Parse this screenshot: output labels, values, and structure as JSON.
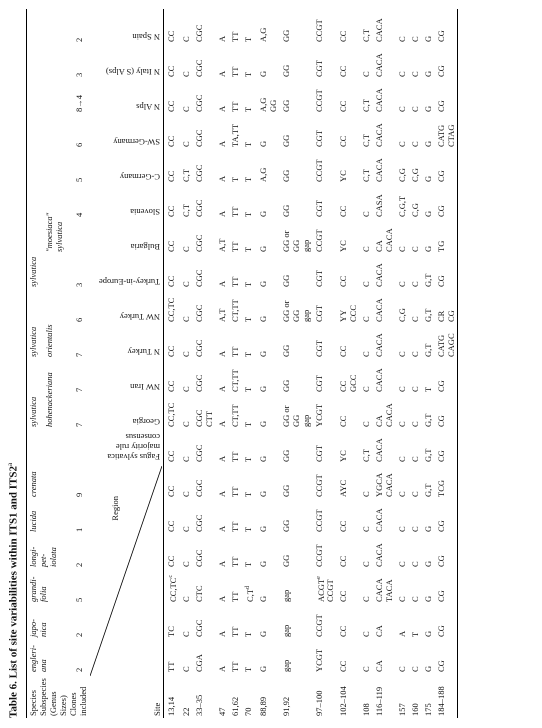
{
  "header": {
    "title": {
      "text": "Table 6. List of site variabilities within ITS1 and ITS2",
      "sup": "a"
    },
    "row_labels": [
      "Species",
      "Subspecies",
      "(Genus Sizes)",
      "Clones",
      "included"
    ],
    "region_label": "Region",
    "site_label": "Site",
    "species": [
      {
        "name": "engleri-\nana",
        "clones": 2
      },
      {
        "name": "japo-\nnica",
        "clones": 2
      },
      {
        "name": "grandi-\nfolia",
        "clones": 5
      },
      {
        "name": "longi-\npet-\niolata",
        "clones": 2
      },
      {
        "name": "lucida",
        "clones": 1
      },
      {
        "name": "crenata",
        "clones": 9
      }
    ],
    "consensus": "Fagus sylvatica majority rule consensus",
    "groups": [
      {
        "species": "sylvatica",
        "subgroups": [
          {
            "subspecies": "hohenackeriana",
            "stations": [
              {
                "name": "Georgia",
                "clones": 7
              },
              {
                "name": "NW Iran",
                "clones": 7
              }
            ]
          }
        ]
      },
      {
        "species": "sylvatica",
        "subgroups": [
          {
            "subspecies": "orientalis",
            "stations": [
              {
                "name": "N Turkey",
                "clones": 7
              },
              {
                "name": "NW Turkey",
                "clones": 6
              }
            ]
          }
        ]
      },
      {
        "species": "sylvatica",
        "subgroups": [
          {
            "stations": [
              {
                "name": "Turkey-in-Europe",
                "clones": 3
              }
            ]
          },
          {
            "subspecies": "\"moesiaca\" sylvatica",
            "stations": [
              {
                "name": "Bulgaria"
              },
              {
                "name": "Slovenia",
                "clones": 4
              }
            ]
          },
          {
            "stations": [
              {
                "name": "C-Germany",
                "clones": 5
              },
              {
                "name": "SW-Germany",
                "clones": 6
              },
              {
                "name": "N Alps",
                "clones": "8→4"
              },
              {
                "name": "N Italy (S Alps)",
                "clones": 3
              },
              {
                "name": "N Spain",
                "clones": 2
              }
            ]
          }
        ]
      }
    ]
  },
  "table": {
    "rows": [
      {
        "site": "13,14",
        "cells": [
          "TT",
          "TC",
          {
            "text": "CC,TC",
            "sup": "c"
          },
          "CC",
          "CC",
          "CC",
          "CC",
          "CC,TC",
          "CC",
          "CC",
          "CC,TC",
          "CC",
          "CC",
          "CC",
          "CC",
          "CC",
          "CC",
          "CC",
          "CC"
        ]
      },
      {
        "site": "22",
        "cells": [
          "C",
          "C",
          "C",
          "C",
          "C",
          "C",
          "C",
          "C",
          "C",
          "C",
          "C",
          "C",
          "C",
          "C,T",
          "C,T",
          "C",
          "C",
          "C",
          "C"
        ]
      },
      {
        "site": "33–35",
        "cells": [
          "CGA",
          "CGC",
          "CTC",
          "CGC",
          "CGC",
          "CGC",
          "CGC",
          "CGC\nCTT",
          "CGC",
          "CGC",
          "CGC",
          "CGC",
          "CGC",
          "CGC",
          "CGC",
          "CGC",
          "CGC",
          "CGC",
          "CGC"
        ]
      },
      {
        "site": "47",
        "cells": [
          "A",
          "A",
          "A",
          "A",
          "A",
          "A",
          "A",
          "A",
          "A",
          "A",
          "A,T",
          "A",
          "A,T",
          "A",
          "A",
          "A",
          "A",
          "A",
          "A"
        ]
      },
      {
        "site": "61,62",
        "cells": [
          "TT",
          "TT",
          "TT",
          "TT",
          "TT",
          "TT",
          "TT",
          "CT,TT",
          "CT,TT",
          "TT",
          "CT,TT",
          "TT",
          "TT",
          "TT",
          "T",
          "TA,TT",
          "TT",
          "TT",
          "TT"
        ]
      },
      {
        "site": "70",
        "cells": [
          "T",
          "T",
          {
            "text": "C,T",
            "sup": "d"
          },
          "T",
          "T",
          "T",
          "T",
          "T",
          "T",
          "T",
          "T",
          "T",
          "T",
          "T",
          "T",
          "T",
          "T",
          "T",
          "T"
        ]
      },
      {
        "site": "88,89",
        "cells": [
          "G",
          "G",
          "G",
          "G",
          "G",
          "G",
          "G",
          "G",
          "G",
          "G",
          "G",
          "G",
          "G",
          "G",
          "A,G",
          "G",
          "A,G\nGG",
          "G",
          "A,G"
        ]
      },
      {
        "site": "91,92",
        "cells": [
          "gap",
          "gap",
          "gap",
          "GG",
          "GG",
          "GG",
          "GG",
          "GG or GG\ngap",
          "GG",
          "GG",
          "GG or GG\ngap",
          "GG",
          "GG or GG\ngap",
          "GG",
          "GG",
          "GG",
          "GG",
          "GG",
          "GG"
        ]
      },
      {
        "site": "97–100",
        "cells": [
          "YCGT",
          "CCGT",
          {
            "text": "ACGT",
            "sup": "e",
            "after": "\nCCGT"
          },
          "CCGT",
          "CCGT",
          "CCGT",
          "CGT",
          "YCGT",
          "CGT",
          "CGT",
          "CGT",
          "CGT",
          "CCGT",
          "CGT",
          "CCGT",
          "CGT",
          "CCGT",
          "CGT",
          "CCGT"
        ]
      },
      {
        "site": "102–104",
        "cells": [
          "CC",
          "CC",
          "CC",
          "CC",
          "CC",
          "AYC",
          "YC",
          "CC",
          "CC\nGCC",
          "CC",
          "YY\nCCC",
          "CC",
          "YC",
          "CC",
          "YC",
          "CC",
          "CC",
          "CC",
          "CC"
        ]
      },
      {
        "site": "108",
        "cells": [
          "C",
          "C",
          "C",
          "C",
          "C",
          "C",
          "C,T",
          "C",
          "C",
          "C",
          "C",
          "C",
          "C",
          "C",
          "C,T",
          "C,T",
          "C,T",
          "C",
          "C,T"
        ]
      },
      {
        "site": "116–119",
        "cells": [
          "CA",
          "CA",
          "CACA\nTACA",
          "CACA",
          "CACA",
          "YGCA\nCACA",
          "CACA",
          "CA\nCACA",
          "CACA",
          "CACA",
          "CACA",
          "CACA",
          "CA\nCACA",
          "CASA",
          "CACA",
          "CACA",
          "CACA",
          "CACA",
          "CACA"
        ]
      },
      {
        "site": "157",
        "cells": [
          "C",
          "A",
          "C",
          "C",
          "C",
          "C",
          "C",
          "C",
          "C",
          "C",
          "C,G",
          "C",
          "C",
          "C,G,T",
          "C,G",
          "C",
          "C",
          "C",
          "C"
        ]
      },
      {
        "site": "160",
        "cells": [
          "C",
          "T",
          "C",
          "C",
          "C",
          "C",
          "C",
          "C",
          "C",
          "C",
          "C",
          "C",
          "C",
          "C,G",
          "C,G",
          "C",
          "C",
          "C",
          "C"
        ]
      },
      {
        "site": "175",
        "cells": [
          "G",
          "G",
          "G",
          "G",
          "G",
          "G,T",
          "G,T",
          "G,T",
          "T",
          "G,T",
          "G,T",
          "G,T",
          "G",
          "G",
          "G",
          "G",
          "G",
          "G",
          "G"
        ]
      },
      {
        "site": "184–188",
        "cells": [
          "CG",
          "CG",
          "CG",
          "CG",
          "CG",
          "TCG",
          "CG",
          "CG",
          "CG",
          "CATG\nCAGC",
          "CR\nCG",
          "CG",
          "TG",
          "CG",
          "CG",
          "CATG\nCTAG",
          "CG",
          "CG",
          "CG"
        ]
      }
    ]
  }
}
